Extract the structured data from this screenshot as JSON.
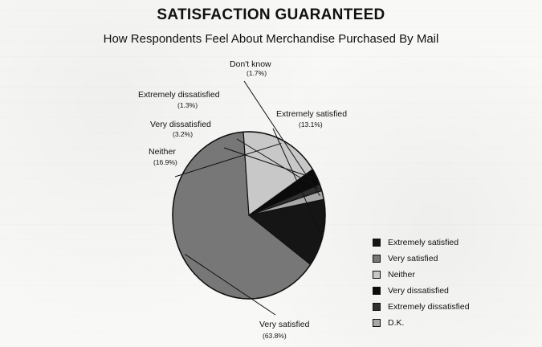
{
  "chart_data": {
    "type": "pie",
    "title": "SATISFACTION GUARANTEED",
    "subtitle": "How Respondents Feel About Merchandise Purchased By Mail",
    "categories": [
      "Extremely satisfied",
      "Very satisfied",
      "Neither",
      "Very dissatisfied",
      "Extremely dissatisfied",
      "Don't know"
    ],
    "values": [
      13.1,
      63.8,
      16.9,
      3.2,
      1.3,
      1.7
    ],
    "value_labels": [
      "(13.1%)",
      "(63.8%)",
      "(16.9%)",
      "(3.2%)",
      "(1.3%)",
      "(1.7%)"
    ],
    "colors": [
      "#151515",
      "#777777",
      "#c8c8c8",
      "#0b0b0b",
      "#303030",
      "#a8a8a8"
    ],
    "legend": [
      {
        "label": "Extremely satisfied",
        "color": "#151515"
      },
      {
        "label": "Very satisfied",
        "color": "#777777"
      },
      {
        "label": "Neither",
        "color": "#c8c8c8"
      },
      {
        "label": "Very dissatisfied",
        "color": "#0b0b0b"
      },
      {
        "label": "Extremely dissatisfied",
        "color": "#303030"
      },
      {
        "label": "D.K.",
        "color": "#a8a8a8"
      }
    ],
    "legend_position": "bottom-right"
  }
}
